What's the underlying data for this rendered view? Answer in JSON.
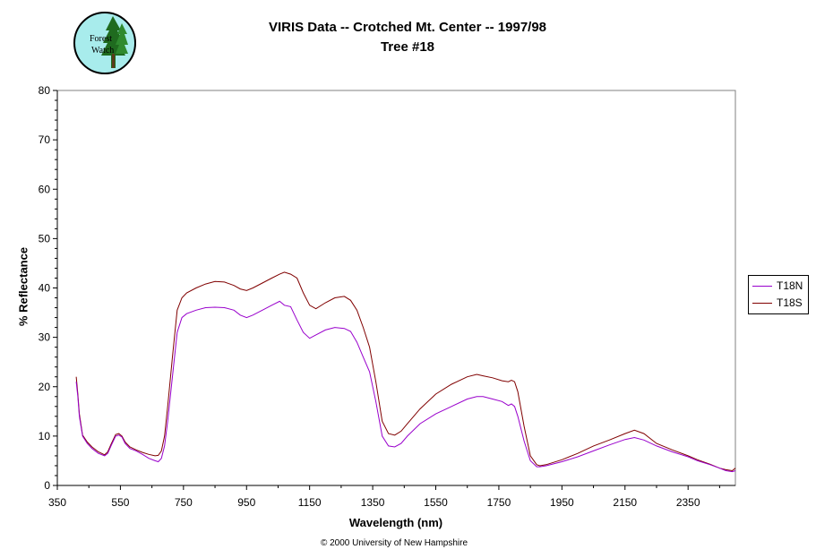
{
  "header": {
    "title_line1": "VIRIS Data -- Crotched Mt. Center -- 1997/98",
    "title_line2": "Tree #18",
    "logo_text": "Forest Watch"
  },
  "footer": {
    "copyright": "© 2000 University of New Hampshire"
  },
  "colors": {
    "T18N": "#9900cc",
    "T18S": "#800000",
    "plot_border": "#808080"
  },
  "chart_data": {
    "type": "line",
    "title": "VIRIS Data -- Crotched Mt. Center -- 1997/98",
    "subtitle": "Tree #18",
    "xlabel": "Wavelength (nm)",
    "ylabel": "% Reflectance",
    "xlim": [
      350,
      2500
    ],
    "ylim": [
      0,
      80
    ],
    "xticks": [
      350,
      550,
      750,
      950,
      1150,
      1350,
      1550,
      1750,
      1950,
      2150,
      2350
    ],
    "yticks": [
      0,
      10,
      20,
      30,
      40,
      50,
      60,
      70,
      80
    ],
    "grid": false,
    "legend_position": "right",
    "series": [
      {
        "name": "T18N",
        "color": "#9900cc",
        "x": [
          410,
          415,
          420,
          430,
          445,
          460,
          480,
          500,
          510,
          520,
          535,
          545,
          555,
          565,
          580,
          600,
          620,
          640,
          660,
          670,
          680,
          690,
          700,
          715,
          730,
          745,
          760,
          790,
          820,
          850,
          880,
          910,
          930,
          950,
          970,
          1000,
          1030,
          1055,
          1070,
          1090,
          1110,
          1130,
          1150,
          1170,
          1200,
          1230,
          1260,
          1280,
          1300,
          1320,
          1340,
          1360,
          1380,
          1400,
          1420,
          1440,
          1460,
          1500,
          1550,
          1600,
          1650,
          1680,
          1700,
          1730,
          1760,
          1780,
          1790,
          1800,
          1810,
          1830,
          1850,
          1870,
          1880,
          1900,
          1950,
          2000,
          2050,
          2100,
          2150,
          2180,
          2210,
          2250,
          2300,
          2350,
          2380,
          2420,
          2450,
          2470,
          2490,
          2500
        ],
        "values": [
          21,
          18,
          14,
          10,
          8.5,
          7.5,
          6.5,
          6,
          6.5,
          8,
          10,
          10.2,
          9.8,
          8.5,
          7.5,
          7,
          6.3,
          5.5,
          5,
          4.8,
          5.5,
          8,
          13,
          22,
          31,
          34,
          34.8,
          35.5,
          36,
          36.1,
          36,
          35.5,
          34.5,
          34,
          34.5,
          35.5,
          36.5,
          37.3,
          36.5,
          36.2,
          33.5,
          31,
          29.8,
          30.5,
          31.5,
          32,
          31.8,
          31.2,
          29,
          26,
          23,
          17,
          10,
          8,
          7.8,
          8.5,
          10,
          12.5,
          14.5,
          16,
          17.5,
          18,
          18,
          17.5,
          17,
          16.2,
          16.5,
          16,
          14,
          9,
          5,
          3.8,
          3.8,
          4,
          4.8,
          5.8,
          7,
          8.2,
          9.3,
          9.7,
          9.2,
          8,
          6.8,
          5.8,
          5,
          4.2,
          3.5,
          3,
          2.8,
          3
        ]
      },
      {
        "name": "T18S",
        "color": "#800000",
        "x": [
          410,
          415,
          420,
          430,
          445,
          460,
          480,
          500,
          510,
          520,
          535,
          545,
          555,
          565,
          580,
          600,
          620,
          640,
          660,
          670,
          680,
          690,
          700,
          715,
          730,
          745,
          760,
          790,
          820,
          850,
          880,
          910,
          930,
          950,
          970,
          1000,
          1030,
          1055,
          1070,
          1090,
          1110,
          1130,
          1150,
          1170,
          1200,
          1230,
          1260,
          1280,
          1300,
          1320,
          1340,
          1360,
          1380,
          1400,
          1420,
          1440,
          1460,
          1500,
          1550,
          1600,
          1650,
          1680,
          1700,
          1730,
          1760,
          1780,
          1790,
          1800,
          1810,
          1830,
          1850,
          1870,
          1880,
          1900,
          1950,
          2000,
          2050,
          2100,
          2150,
          2180,
          2210,
          2250,
          2300,
          2350,
          2380,
          2420,
          2450,
          2470,
          2490,
          2500
        ],
        "values": [
          22,
          18.5,
          14.5,
          10.2,
          8.8,
          7.8,
          6.8,
          6.2,
          6.8,
          8.3,
          10.3,
          10.5,
          10,
          8.8,
          7.8,
          7.2,
          6.7,
          6.3,
          6,
          6.1,
          7,
          10,
          16,
          26,
          35.5,
          38,
          39,
          40,
          40.8,
          41.3,
          41.2,
          40.5,
          39.8,
          39.5,
          40,
          41,
          42,
          42.8,
          43.2,
          42.8,
          42,
          39,
          36.5,
          35.8,
          37,
          38,
          38.3,
          37.5,
          35.5,
          32,
          28,
          21,
          13,
          10.5,
          10.2,
          11,
          12.5,
          15.5,
          18.5,
          20.5,
          22,
          22.5,
          22.2,
          21.8,
          21.2,
          21,
          21.3,
          21,
          19,
          12,
          6,
          4.2,
          4,
          4.2,
          5.2,
          6.5,
          8,
          9.2,
          10.5,
          11.2,
          10.5,
          8.5,
          7.2,
          6,
          5.2,
          4.3,
          3.5,
          3.2,
          3,
          3.5
        ]
      }
    ]
  }
}
